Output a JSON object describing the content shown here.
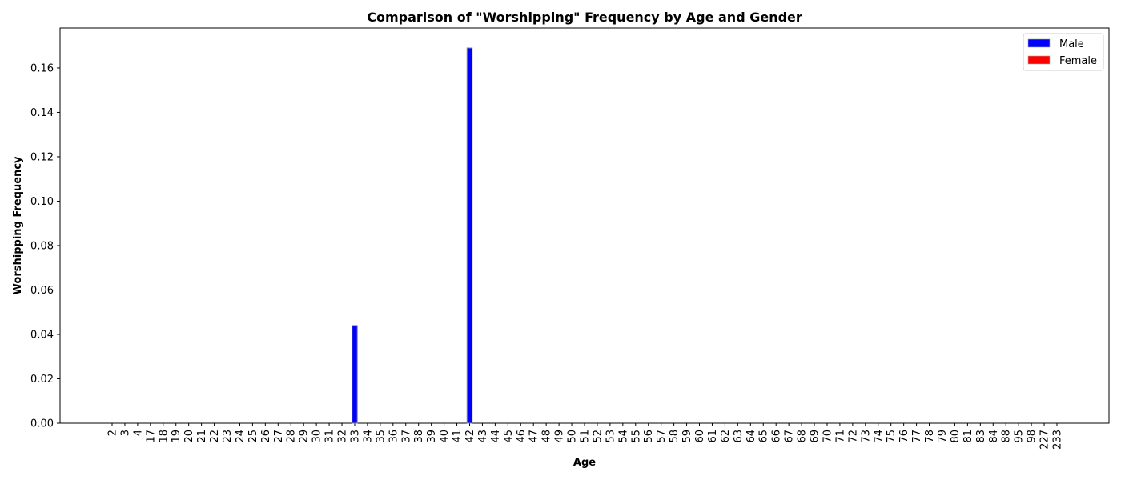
{
  "chart_data": {
    "type": "bar",
    "title": "Comparison of \"Worshipping\" Frequency by Age and Gender",
    "xlabel": "Age",
    "ylabel": "Worshipping Frequency",
    "categories": [
      "2",
      "3",
      "4",
      "17",
      "18",
      "19",
      "20",
      "21",
      "22",
      "23",
      "24",
      "25",
      "26",
      "27",
      "28",
      "29",
      "30",
      "31",
      "32",
      "33",
      "34",
      "35",
      "36",
      "37",
      "38",
      "39",
      "40",
      "41",
      "42",
      "43",
      "44",
      "45",
      "46",
      "47",
      "48",
      "49",
      "50",
      "51",
      "52",
      "53",
      "54",
      "55",
      "56",
      "57",
      "58",
      "59",
      "60",
      "61",
      "62",
      "63",
      "64",
      "65",
      "66",
      "67",
      "68",
      "69",
      "70",
      "71",
      "72",
      "73",
      "74",
      "75",
      "76",
      "77",
      "78",
      "79",
      "80",
      "81",
      "83",
      "84",
      "88",
      "95",
      "98",
      "227",
      "233"
    ],
    "series": [
      {
        "name": "Male",
        "color": "#0000ff",
        "values": [
          0,
          0,
          0,
          0,
          0,
          0,
          0,
          0,
          0,
          0,
          0,
          0,
          0,
          0,
          0,
          0,
          0,
          0,
          0,
          0.044,
          0,
          0,
          0,
          0,
          0,
          0,
          0,
          0,
          0.169,
          0,
          0,
          0,
          0,
          0,
          0,
          0,
          0,
          0,
          0,
          0,
          0,
          0,
          0,
          0,
          0,
          0,
          0,
          0,
          0,
          0,
          0,
          0,
          0,
          0,
          0,
          0,
          0,
          0,
          0,
          0,
          0,
          0,
          0,
          0,
          0,
          0,
          0,
          0,
          0,
          0,
          0,
          0,
          0,
          0,
          0
        ]
      },
      {
        "name": "Female",
        "color": "#ff0000",
        "values": [
          0,
          0,
          0,
          0,
          0,
          0,
          0,
          0,
          0,
          0,
          0,
          0,
          0,
          0,
          0,
          0,
          0,
          0,
          0,
          0,
          0,
          0,
          0,
          0,
          0,
          0,
          0,
          0,
          0,
          0,
          0,
          0,
          0,
          0,
          0,
          0,
          0,
          0,
          0,
          0,
          0,
          0,
          0,
          0,
          0,
          0,
          0,
          0,
          0,
          0,
          0,
          0,
          0,
          0,
          0,
          0,
          0,
          0,
          0,
          0,
          0,
          0,
          0,
          0,
          0,
          0,
          0,
          0,
          0,
          0,
          0,
          0,
          0,
          0,
          0
        ]
      }
    ],
    "ylim": [
      0,
      0.178
    ],
    "yticks": [
      "0.00",
      "0.02",
      "0.04",
      "0.06",
      "0.08",
      "0.10",
      "0.12",
      "0.14",
      "0.16"
    ],
    "grid": false,
    "legend_position": "top-right"
  }
}
